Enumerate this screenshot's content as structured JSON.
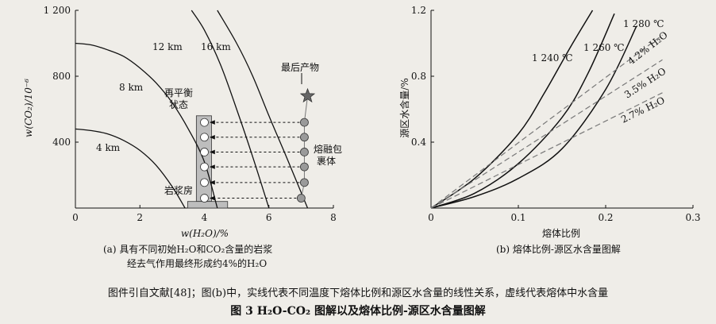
{
  "chart_data": [
    {
      "type": "line",
      "panel": "a",
      "xlabel": "w(H₂O)/%",
      "ylabel": "w(CO₂)/10⁻⁶",
      "xlim": [
        0,
        8
      ],
      "ylim": [
        0,
        1200
      ],
      "xticks": [
        0,
        2,
        4,
        6,
        8
      ],
      "yticks": [
        "",
        "400",
        "800",
        "1 200"
      ],
      "ytick_values": [
        0,
        400,
        800,
        1200
      ],
      "series": [
        {
          "name": "4 km",
          "x": [
            0,
            0.5,
            1,
            1.5,
            2,
            2.5,
            3,
            3.4
          ],
          "y": [
            480,
            470,
            450,
            410,
            350,
            260,
            130,
            0
          ]
        },
        {
          "name": "8 km",
          "x": [
            0,
            0.5,
            1,
            1.5,
            2,
            2.5,
            3,
            3.5,
            4,
            4.4
          ],
          "y": [
            1000,
            990,
            960,
            920,
            850,
            760,
            640,
            480,
            280,
            0
          ]
        },
        {
          "name": "12 km",
          "x": [
            3.6,
            4,
            4.5,
            5,
            5.5,
            6
          ],
          "y": [
            1200,
            1080,
            870,
            600,
            310,
            0
          ]
        },
        {
          "name": "16 km",
          "x": [
            4.4,
            5,
            5.5,
            6,
            6.5,
            7.2
          ],
          "y": [
            1200,
            1000,
            800,
            560,
            330,
            0
          ]
        }
      ],
      "chamber_label": "岩浆房",
      "re_eq_label_1": "再平衡",
      "re_eq_label_2": "状态",
      "final_product_label": "最后产物",
      "inclusion_label_1": "熔融包",
      "inclusion_label_2": "裹体",
      "caption_line1": "(a)   具有不同初始H₂O和CO₂含量的岩浆",
      "caption_line2": "经去气作用最终形成约4%的H₂O",
      "inclusion_points": [
        {
          "x": 7.1,
          "y": 520
        },
        {
          "x": 7.1,
          "y": 430
        },
        {
          "x": 7.1,
          "y": 340
        },
        {
          "x": 7.1,
          "y": 250
        },
        {
          "x": 7.1,
          "y": 155
        },
        {
          "x": 7.0,
          "y": 60
        }
      ],
      "reequilibrated_points": [
        {
          "x": 4.0,
          "y": 520
        },
        {
          "x": 4.0,
          "y": 430
        },
        {
          "x": 4.0,
          "y": 340
        },
        {
          "x": 4.0,
          "y": 250
        },
        {
          "x": 4.0,
          "y": 155
        },
        {
          "x": 4.0,
          "y": 60
        }
      ],
      "final_product_point": {
        "x": 7.2,
        "y": 680
      }
    },
    {
      "type": "line",
      "panel": "b",
      "xlabel": "熔体比例",
      "ylabel": "源区水含量/%",
      "xlim": [
        0,
        0.3
      ],
      "ylim": [
        0,
        1.2
      ],
      "xticks": [
        "0",
        "0.1",
        "0.2",
        "0.3"
      ],
      "xtick_values": [
        0,
        0.1,
        0.2,
        0.3
      ],
      "yticks": [
        "0.4",
        "0.8",
        "1.2"
      ],
      "ytick_values": [
        0.4,
        0.8,
        1.2
      ],
      "series": [
        {
          "name": "1 240 ℃",
          "style": "solid",
          "x": [
            0,
            0.05,
            0.1,
            0.13,
            0.16,
            0.185
          ],
          "y": [
            0,
            0.18,
            0.45,
            0.7,
            0.98,
            1.2
          ]
        },
        {
          "name": "1 260 ℃",
          "style": "solid",
          "x": [
            0,
            0.05,
            0.1,
            0.15,
            0.18,
            0.21
          ],
          "y": [
            0,
            0.09,
            0.27,
            0.55,
            0.82,
            1.18
          ]
        },
        {
          "name": "1 280 ℃",
          "style": "solid",
          "x": [
            0,
            0.05,
            0.1,
            0.15,
            0.2,
            0.235
          ],
          "y": [
            0,
            0.07,
            0.18,
            0.36,
            0.72,
            1.1
          ]
        },
        {
          "name": "4.2% H₂O",
          "style": "dashed",
          "x": [
            0,
            0.265
          ],
          "y": [
            0,
            1.05
          ]
        },
        {
          "name": "3.5% H₂O",
          "style": "dashed",
          "x": [
            0,
            0.265
          ],
          "y": [
            0,
            0.9
          ]
        },
        {
          "name": "2.7% H₂O",
          "style": "dashed",
          "x": [
            0,
            0.265
          ],
          "y": [
            0,
            0.7
          ]
        }
      ],
      "caption": "(b)   熔体比例-源区水含量图解"
    }
  ],
  "figure": {
    "note": "图件引自文献[48]；图(b)中，实线代表不同温度下熔体比例和源区水含量的线性关系，虚线代表熔体中水含量",
    "title": "图 3   H₂O-CO₂ 图解以及熔体比例-源区水含量图解"
  }
}
